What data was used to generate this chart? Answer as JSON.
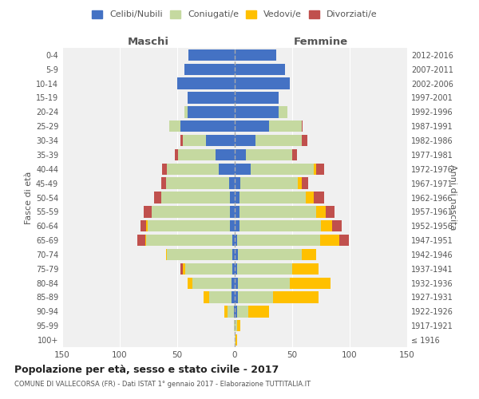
{
  "age_groups": [
    "100+",
    "95-99",
    "90-94",
    "85-89",
    "80-84",
    "75-79",
    "70-74",
    "65-69",
    "60-64",
    "55-59",
    "50-54",
    "45-49",
    "40-44",
    "35-39",
    "30-34",
    "25-29",
    "20-24",
    "15-19",
    "10-14",
    "5-9",
    "0-4"
  ],
  "birth_years": [
    "≤ 1916",
    "1917-1921",
    "1922-1926",
    "1927-1931",
    "1932-1936",
    "1937-1941",
    "1942-1946",
    "1947-1951",
    "1952-1956",
    "1957-1961",
    "1962-1966",
    "1967-1971",
    "1972-1976",
    "1977-1981",
    "1982-1986",
    "1987-1991",
    "1992-1996",
    "1997-2001",
    "2002-2006",
    "2007-2011",
    "2012-2016"
  ],
  "male": {
    "celibe": [
      0,
      0,
      1,
      3,
      3,
      2,
      2,
      2,
      4,
      4,
      4,
      5,
      14,
      17,
      25,
      47,
      41,
      41,
      50,
      44,
      40
    ],
    "coniugato": [
      0,
      1,
      5,
      19,
      34,
      41,
      57,
      75,
      72,
      68,
      60,
      55,
      45,
      32,
      20,
      10,
      3,
      0,
      0,
      0,
      0
    ],
    "vedovo": [
      0,
      0,
      3,
      5,
      4,
      2,
      1,
      1,
      1,
      0,
      0,
      0,
      0,
      0,
      0,
      0,
      0,
      0,
      0,
      0,
      0
    ],
    "divorziato": [
      0,
      0,
      0,
      0,
      0,
      2,
      0,
      7,
      5,
      7,
      6,
      4,
      4,
      3,
      2,
      0,
      0,
      0,
      0,
      0,
      0
    ]
  },
  "female": {
    "nubile": [
      0,
      0,
      2,
      3,
      3,
      2,
      3,
      2,
      4,
      4,
      4,
      5,
      14,
      10,
      18,
      30,
      38,
      38,
      48,
      44,
      36
    ],
    "coniugata": [
      1,
      2,
      10,
      30,
      45,
      48,
      55,
      72,
      71,
      67,
      58,
      50,
      55,
      40,
      40,
      28,
      8,
      0,
      0,
      0,
      0
    ],
    "vedova": [
      1,
      3,
      18,
      40,
      35,
      23,
      13,
      17,
      10,
      8,
      7,
      3,
      2,
      0,
      0,
      0,
      0,
      0,
      0,
      0,
      0
    ],
    "divorziata": [
      0,
      0,
      0,
      0,
      0,
      0,
      0,
      8,
      8,
      8,
      9,
      6,
      7,
      4,
      5,
      1,
      0,
      0,
      0,
      0,
      0
    ]
  },
  "color_celibe": "#4472c4",
  "color_coniugato": "#c5d9a0",
  "color_vedovo": "#ffc000",
  "color_divorziato": "#c0504d",
  "title": "Popolazione per età, sesso e stato civile - 2017",
  "subtitle": "COMUNE DI VALLECORSA (FR) - Dati ISTAT 1° gennaio 2017 - Elaborazione TUTTITALIA.IT",
  "xlabel_left": "Maschi",
  "xlabel_right": "Femmine",
  "ylabel_left": "Fasce di età",
  "ylabel_right": "Anni di nascita",
  "xlim": 150,
  "bg_color": "#ffffff",
  "plot_bg_color": "#f0f0f0",
  "grid_color": "#ffffff",
  "bar_height": 0.8
}
